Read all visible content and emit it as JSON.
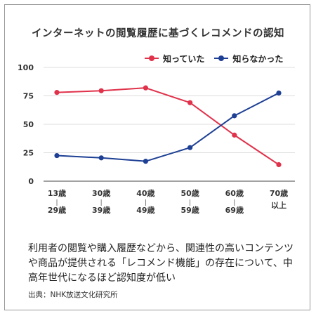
{
  "title": "インターネットの閲覧履歴に基づくレコメンドの認知",
  "chart_data": {
    "type": "line",
    "title": "インターネットの閲覧履歴に基づくレコメンドの認知",
    "categories": [
      [
        "13歳",
        "29歳"
      ],
      [
        "30歳",
        "39歳"
      ],
      [
        "40歳",
        "49歳"
      ],
      [
        "50歳",
        "59歳"
      ],
      [
        "60歳",
        "69歳"
      ],
      [
        "70歳",
        "以上"
      ]
    ],
    "category_separator": "|",
    "series": [
      {
        "name": "知っていた",
        "color": "#e0324b",
        "values": [
          78,
          79.5,
          82,
          69,
          40.5,
          14.5
        ]
      },
      {
        "name": "知らなかった",
        "color": "#1d3f94",
        "values": [
          22.5,
          20.5,
          17.5,
          29.5,
          57.5,
          77.5
        ]
      }
    ],
    "yticks": [
      0,
      25,
      50,
      75,
      100
    ],
    "ylim": [
      0,
      100
    ],
    "grid": "horizontal",
    "legend_position": "top-right"
  },
  "caption": "利用者の閲覧や購入履歴などから、関連性の高いコンテンツや商品が提供される「レコメンド機能」の存在について、中高年世代になるほど認知度が低い",
  "source": "出典：NHK放送文化研究所"
}
